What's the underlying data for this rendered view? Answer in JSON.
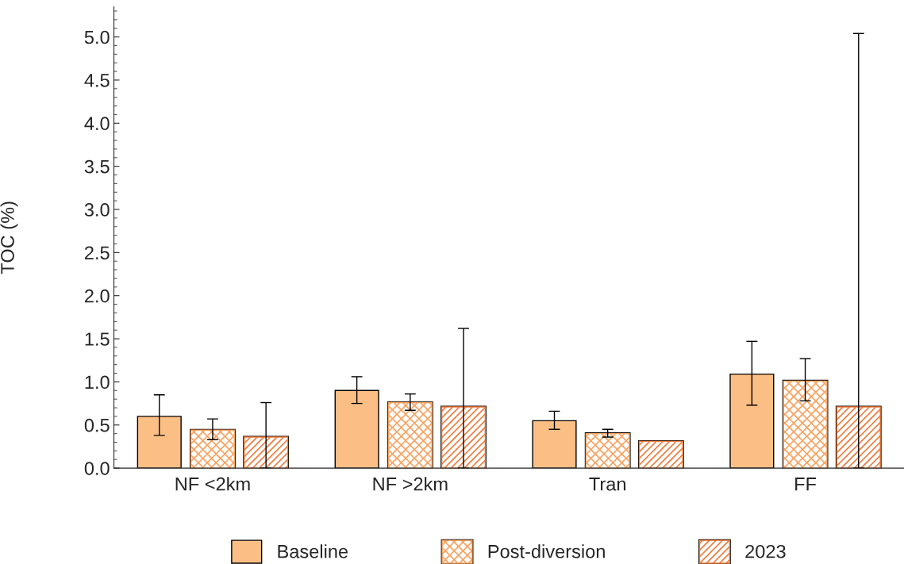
{
  "chart_data": {
    "type": "bar",
    "ylabel": "TOC (%)",
    "categories": [
      "NF <2km",
      "NF >2km",
      "Tran",
      "FF"
    ],
    "series": [
      {
        "name": "Baseline",
        "color": "#fbbf86",
        "values": [
          0.6,
          0.9,
          0.55,
          1.09
        ],
        "errors": [
          [
            0.38,
            0.85
          ],
          [
            0.75,
            1.06
          ],
          [
            0.45,
            0.66
          ],
          [
            0.73,
            1.47
          ]
        ]
      },
      {
        "name": "Post-diversion",
        "color": "#f9a15e",
        "values": [
          0.44,
          0.76,
          0.4,
          1.01
        ],
        "errors": [
          [
            0.33,
            0.57
          ],
          [
            0.67,
            0.86
          ],
          [
            0.36,
            0.45
          ],
          [
            0.78,
            1.27
          ]
        ]
      },
      {
        "name": "2023",
        "color": "#ef7a3a",
        "values": [
          0.36,
          0.71,
          0.31,
          0.71
        ],
        "errors": [
          [
            0.0,
            0.76
          ],
          [
            0.0,
            1.62
          ],
          null,
          [
            0.0,
            5.04
          ]
        ]
      }
    ],
    "ylim": [
      0,
      5.35
    ],
    "yticks": [
      {
        "value": 0,
        "label": "0.0"
      },
      0.5,
      {
        "value": 1,
        "label": "1.0"
      },
      1.5,
      {
        "value": 2,
        "label": "2.0"
      },
      2.5,
      {
        "value": 3,
        "label": "3.0"
      },
      3.5,
      {
        "value": 4,
        "label": "4.0"
      },
      4.5,
      {
        "value": 5,
        "label": "5.0"
      }
    ],
    "grid": false,
    "legend": "bottom"
  }
}
